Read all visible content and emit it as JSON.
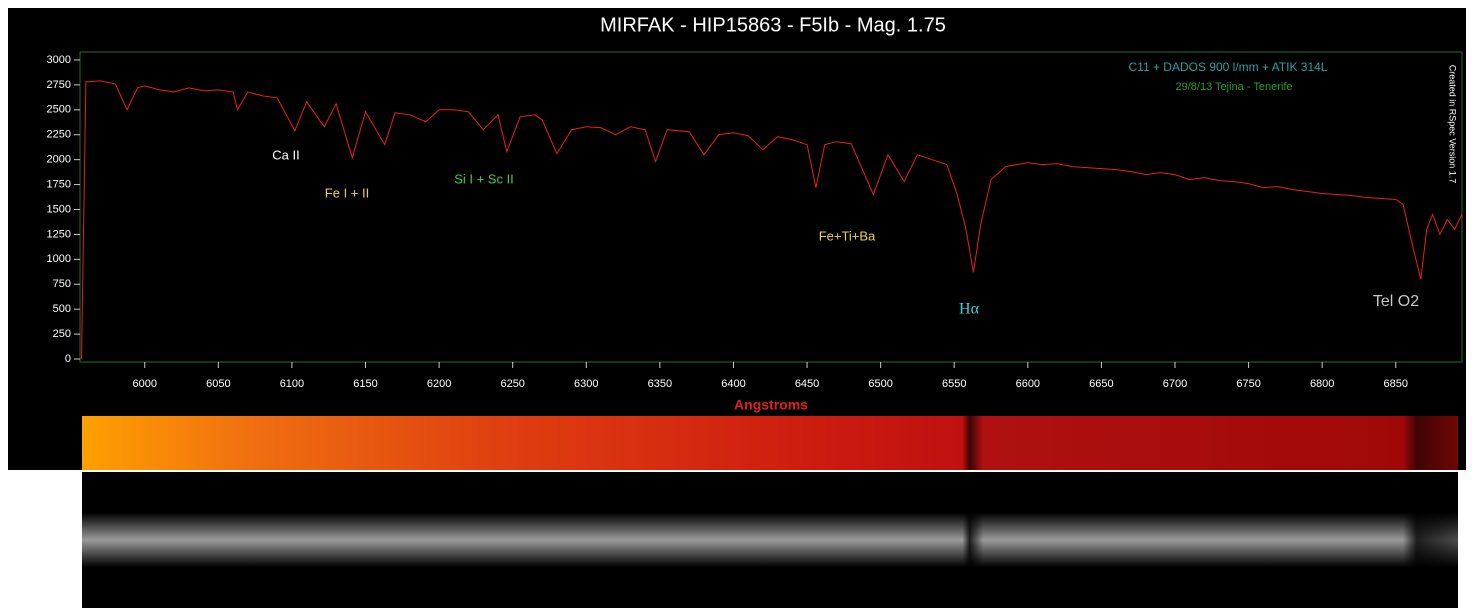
{
  "chart_data": {
    "type": "line",
    "title": "MIRFAK - HIP15863 - F5Ib - Mag. 1.75",
    "xlabel": "Angstroms",
    "color": "#e82020",
    "x": [
      5957,
      5960,
      5970,
      5980,
      5988,
      5995,
      6000,
      6010,
      6020,
      6030,
      6040,
      6050,
      6060,
      6063,
      6070,
      6080,
      6090,
      6102,
      6110,
      6122,
      6130,
      6141,
      6150,
      6163,
      6170,
      6180,
      6191,
      6200,
      6210,
      6220,
      6230,
      6240,
      6246,
      6255,
      6265,
      6270,
      6280,
      6290,
      6300,
      6310,
      6320,
      6330,
      6340,
      6347,
      6355,
      6370,
      6380,
      6390,
      6400,
      6410,
      6420,
      6430,
      6440,
      6450,
      6456,
      6462,
      6470,
      6480,
      6495,
      6505,
      6516,
      6525,
      6535,
      6545,
      6552,
      6558,
      6563,
      6568,
      6575,
      6585,
      6600,
      6610,
      6620,
      6630,
      6640,
      6650,
      6660,
      6670,
      6680,
      6690,
      6700,
      6710,
      6720,
      6730,
      6740,
      6750,
      6760,
      6770,
      6780,
      6790,
      6800,
      6810,
      6820,
      6830,
      6840,
      6850,
      6855,
      6862,
      6867,
      6871,
      6875,
      6880,
      6885,
      6890,
      6895
    ],
    "values": [
      0,
      2780,
      2790,
      2760,
      2500,
      2720,
      2740,
      2700,
      2680,
      2720,
      2690,
      2700,
      2680,
      2500,
      2680,
      2640,
      2620,
      2290,
      2580,
      2330,
      2560,
      2020,
      2480,
      2150,
      2470,
      2450,
      2380,
      2500,
      2500,
      2480,
      2300,
      2450,
      2080,
      2430,
      2450,
      2400,
      2060,
      2300,
      2330,
      2320,
      2250,
      2330,
      2300,
      1980,
      2300,
      2280,
      2050,
      2250,
      2270,
      2240,
      2100,
      2230,
      2200,
      2150,
      1720,
      2150,
      2180,
      2160,
      1650,
      2050,
      1780,
      2050,
      2000,
      1950,
      1650,
      1300,
      870,
      1350,
      1800,
      1930,
      1970,
      1950,
      1960,
      1930,
      1920,
      1910,
      1900,
      1880,
      1850,
      1870,
      1850,
      1800,
      1820,
      1790,
      1780,
      1760,
      1720,
      1730,
      1700,
      1680,
      1660,
      1650,
      1640,
      1620,
      1610,
      1600,
      1550,
      1100,
      800,
      1300,
      1450,
      1250,
      1400,
      1300,
      1450
    ],
    "xlim": [
      5956,
      6895
    ],
    "ylim": [
      -30,
      3080
    ],
    "xticks": [
      6000,
      6050,
      6100,
      6150,
      6200,
      6250,
      6300,
      6350,
      6400,
      6450,
      6500,
      6550,
      6600,
      6650,
      6700,
      6750,
      6800,
      6850
    ],
    "yticks": [
      0,
      250,
      500,
      750,
      1000,
      1250,
      1500,
      1750,
      2000,
      2250,
      2500,
      2750,
      3000
    ],
    "annotations": [
      {
        "text": "Ca II",
        "color": "#ffffff"
      },
      {
        "text": "Fe I + II",
        "color": "#e8d050"
      },
      {
        "text": "Si I + Sc II",
        "color": "#40d040"
      },
      {
        "text": "Fe+Ti+Ba",
        "color": "#e8d050"
      },
      {
        "text": "Hα",
        "color": "#40d0e0"
      },
      {
        "text": "Tel O2",
        "color": "#c8c8c8"
      },
      {
        "text": "C11 + DADOS 900 l/mm + ATIK 314L",
        "color": "#2aa0a0"
      },
      {
        "text": "29/8/13  Tejina - Tenerife",
        "color": "#2a9a2a"
      },
      {
        "text": "Created in RSpec Version 1.7",
        "color": "#ffffff"
      }
    ]
  }
}
